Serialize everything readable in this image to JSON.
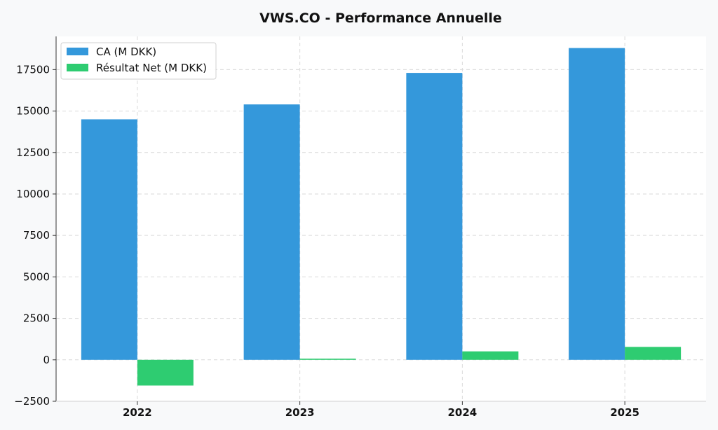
{
  "chart_data": {
    "type": "bar",
    "title": "VWS.CO - Performance Annuelle",
    "xlabel": "",
    "ylabel": "",
    "categories": [
      "2022",
      "2023",
      "2024",
      "2025"
    ],
    "series": [
      {
        "name": "CA (M DKK)",
        "color": "#3498db",
        "values": [
          14500,
          15400,
          17300,
          18800
        ]
      },
      {
        "name": "Résultat Net (M DKK)",
        "color": "#2ecc71",
        "values": [
          -1550,
          70,
          510,
          780
        ]
      }
    ],
    "ylim": [
      -2500,
      19500
    ],
    "yticks": [
      -2500,
      0,
      2500,
      5000,
      7500,
      10000,
      12500,
      15000,
      17500
    ],
    "ytick_labels": [
      "−2500",
      "0",
      "2500",
      "5000",
      "7500",
      "10000",
      "12500",
      "15000",
      "17500"
    ],
    "grid": true,
    "legend_position": "top-left"
  }
}
